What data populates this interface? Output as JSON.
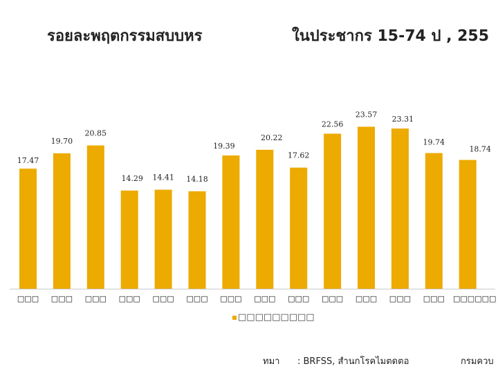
{
  "header": {
    "title_left": "รอยละพฤตกรรมสบบหร",
    "title_right": "ในประชากร 15-74 ป , 255"
  },
  "legend": {
    "label": "□□□□□□□□□"
  },
  "footer": {
    "label": "ทมา",
    "source": ": BRFSS, สำนกโรคไมตดตอ",
    "right": "กรมควบ"
  },
  "colors": {
    "bar": "#EDAA00",
    "axis": "#c8c8c8"
  },
  "chart_data": {
    "type": "bar",
    "categories": [
      "□□□",
      "□□□",
      "□□□",
      "□□□",
      "□□□",
      "□□□",
      "□□□",
      "□□□",
      "□□□",
      "□□□",
      "□□□",
      "□□□",
      "□□□",
      "□□□□□□"
    ],
    "series": [
      {
        "values": [
          17.47,
          19.7,
          20.85,
          14.29,
          14.41,
          14.18,
          19.39,
          20.22,
          17.62,
          22.56,
          23.57,
          23.31,
          19.74,
          18.74
        ]
      }
    ],
    "value_labels": [
      "17.47",
      "19.70",
      "20.85",
      "14.29",
      "14.41",
      "14.18",
      "19.39",
      "20.22",
      "17.62",
      "22.56",
      "23.57",
      "23.31",
      "19.74",
      "18.74"
    ],
    "ylim": [
      0,
      25
    ],
    "grid": false,
    "legend_position": "bottom"
  }
}
